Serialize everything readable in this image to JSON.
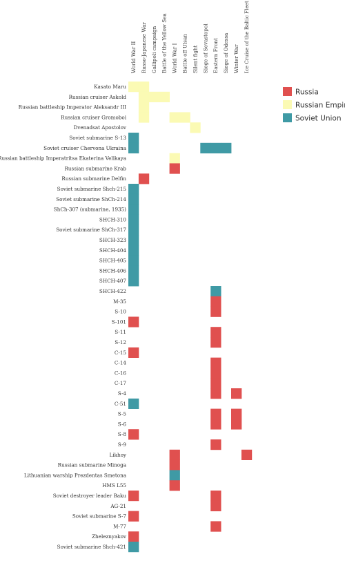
{
  "chart_data": {
    "type": "heatmap",
    "columns": [
      "World War II",
      "Russo-Japanese War",
      "Gallipoli campaign",
      "Battle of the Yellow Sea",
      "World War I",
      "Battle off Ulsan",
      "Silent fight",
      "Siege of Sevastopol",
      "Eastern Front",
      "Siege of Odessa",
      "Winter War",
      "Ice Cruise of the Baltic Fleet"
    ],
    "rows": [
      "Kasato Maru",
      "Russian cruiser Askold",
      "Russian battleship Imperator Aleksandr III",
      "Russian cruiser Gromoboi",
      "Dvenadsat Apostolov",
      "Soviet submarine S-13",
      "Soviet cruiser Chervona Ukraina",
      "Russian battleship Imperatritsa Ekaterina Velikaya",
      "Russian submarine Krab",
      "Russian submarine Delfin",
      "Soviet submarine Shch-215",
      "Soviet submarine ShCh-214",
      "ShCh-307 (submarine, 1935)",
      "SHCH-310",
      "Soviet submarine ShCh-317",
      "SHCH-323",
      "SHCH-404",
      "SHCH-405",
      "SHCH-406",
      "SHCH-407",
      "SHCH-422",
      "M-35",
      "S-10",
      "S-101",
      "S-11",
      "S-12",
      "C-15",
      "C-14",
      "C-16",
      "C-17",
      "S-4",
      "C-51",
      "S-5",
      "S-6",
      "S-8",
      "S-9",
      "Likhoy",
      "Russian submarine Minoga",
      "Lithuanian warship Prezdentas Smetona",
      "HMS L55",
      "Soviet destroyer leader Baku",
      "AG-21",
      "Soviet submarine S-7",
      "M-77",
      "Zheleznyakov",
      "Soviet submarine Shch-421"
    ],
    "legend": [
      {
        "name": "Russia",
        "color": "#e0504f"
      },
      {
        "name": "Russian Empire",
        "color": "#fbfab4"
      },
      {
        "name": "Soviet Union",
        "color": "#3f9aa5"
      }
    ],
    "legend_position": "top-right",
    "cells": [
      {
        "row": "Kasato Maru",
        "col": "World War II",
        "series": "Russian Empire"
      },
      {
        "row": "Kasato Maru",
        "col": "Russo-Japanese War",
        "series": "Russian Empire"
      },
      {
        "row": "Russian cruiser Askold",
        "col": "Russo-Japanese War",
        "series": "Russian Empire"
      },
      {
        "row": "Russian cruiser Askold",
        "col": "Gallipoli campaign",
        "series": "Russian Empire"
      },
      {
        "row": "Russian cruiser Askold",
        "col": "Battle of the Yellow Sea",
        "series": "Russian Empire"
      },
      {
        "row": "Russian battleship Imperator Aleksandr III",
        "col": "Russo-Japanese War",
        "series": "Russian Empire"
      },
      {
        "row": "Russian cruiser Gromoboi",
        "col": "Russo-Japanese War",
        "series": "Russian Empire"
      },
      {
        "row": "Russian cruiser Gromoboi",
        "col": "World War I",
        "series": "Russian Empire"
      },
      {
        "row": "Russian cruiser Gromoboi",
        "col": "Battle off Ulsan",
        "series": "Russian Empire"
      },
      {
        "row": "Dvenadsat Apostolov",
        "col": "Silent fight",
        "series": "Russian Empire"
      },
      {
        "row": "Soviet submarine S-13",
        "col": "World War II",
        "series": "Soviet Union"
      },
      {
        "row": "Soviet cruiser Chervona Ukraina",
        "col": "World War II",
        "series": "Soviet Union"
      },
      {
        "row": "Soviet cruiser Chervona Ukraina",
        "col": "Siege of Sevastopol",
        "series": "Soviet Union"
      },
      {
        "row": "Soviet cruiser Chervona Ukraina",
        "col": "Eastern Front",
        "series": "Soviet Union"
      },
      {
        "row": "Soviet cruiser Chervona Ukraina",
        "col": "Siege of Odessa",
        "series": "Soviet Union"
      },
      {
        "row": "Russian battleship Imperatritsa Ekaterina Velikaya",
        "col": "World War I",
        "series": "Russian Empire"
      },
      {
        "row": "Russian submarine Krab",
        "col": "World War I",
        "series": "Russia"
      },
      {
        "row": "Russian submarine Delfin",
        "col": "Russo-Japanese War",
        "series": "Russia"
      },
      {
        "row": "Soviet submarine Shch-215",
        "col": "World War II",
        "series": "Soviet Union"
      },
      {
        "row": "Soviet submarine ShCh-214",
        "col": "World War II",
        "series": "Soviet Union"
      },
      {
        "row": "ShCh-307 (submarine, 1935)",
        "col": "World War II",
        "series": "Soviet Union"
      },
      {
        "row": "SHCH-310",
        "col": "World War II",
        "series": "Soviet Union"
      },
      {
        "row": "Soviet submarine ShCh-317",
        "col": "World War II",
        "series": "Soviet Union"
      },
      {
        "row": "SHCH-323",
        "col": "World War II",
        "series": "Soviet Union"
      },
      {
        "row": "SHCH-404",
        "col": "World War II",
        "series": "Soviet Union"
      },
      {
        "row": "SHCH-405",
        "col": "World War II",
        "series": "Soviet Union"
      },
      {
        "row": "SHCH-406",
        "col": "World War II",
        "series": "Soviet Union"
      },
      {
        "row": "SHCH-407",
        "col": "World War II",
        "series": "Soviet Union"
      },
      {
        "row": "SHCH-422",
        "col": "Eastern Front",
        "series": "Soviet Union"
      },
      {
        "row": "M-35",
        "col": "Eastern Front",
        "series": "Russia"
      },
      {
        "row": "S-10",
        "col": "Eastern Front",
        "series": "Russia"
      },
      {
        "row": "S-101",
        "col": "World War II",
        "series": "Russia"
      },
      {
        "row": "S-11",
        "col": "Eastern Front",
        "series": "Russia"
      },
      {
        "row": "S-12",
        "col": "Eastern Front",
        "series": "Russia"
      },
      {
        "row": "C-15",
        "col": "World War II",
        "series": "Russia"
      },
      {
        "row": "C-14",
        "col": "Eastern Front",
        "series": "Russia"
      },
      {
        "row": "C-16",
        "col": "Eastern Front",
        "series": "Russia"
      },
      {
        "row": "C-17",
        "col": "Eastern Front",
        "series": "Russia"
      },
      {
        "row": "S-4",
        "col": "Eastern Front",
        "series": "Russia"
      },
      {
        "row": "S-4",
        "col": "Winter War",
        "series": "Russia"
      },
      {
        "row": "C-51",
        "col": "World War II",
        "series": "Soviet Union"
      },
      {
        "row": "S-5",
        "col": "Eastern Front",
        "series": "Russia"
      },
      {
        "row": "S-5",
        "col": "Winter War",
        "series": "Russia"
      },
      {
        "row": "S-6",
        "col": "Eastern Front",
        "series": "Russia"
      },
      {
        "row": "S-6",
        "col": "Winter War",
        "series": "Russia"
      },
      {
        "row": "S-8",
        "col": "World War II",
        "series": "Russia"
      },
      {
        "row": "S-9",
        "col": "Eastern Front",
        "series": "Russia"
      },
      {
        "row": "Likhoy",
        "col": "Ice Cruise of the Baltic Fleet",
        "series": "Russia"
      },
      {
        "row": "Likhoy",
        "col": "World War I",
        "series": "Russia"
      },
      {
        "row": "Russian submarine Minoga",
        "col": "World War I",
        "series": "Russia"
      },
      {
        "row": "Lithuanian warship Prezdentas Smetona",
        "col": "World War I",
        "series": "Soviet Union"
      },
      {
        "row": "HMS L55",
        "col": "World War I",
        "series": "Russia"
      },
      {
        "row": "Soviet destroyer leader Baku",
        "col": "World War II",
        "series": "Russia"
      },
      {
        "row": "Soviet destroyer leader Baku",
        "col": "Eastern Front",
        "series": "Russia"
      },
      {
        "row": "AG-21",
        "col": "Eastern Front",
        "series": "Russia"
      },
      {
        "row": "Soviet submarine S-7",
        "col": "World War II",
        "series": "Russia"
      },
      {
        "row": "M-77",
        "col": "Eastern Front",
        "series": "Russia"
      },
      {
        "row": "Zheleznyakov",
        "col": "World War II",
        "series": "Russia"
      },
      {
        "row": "Soviet submarine Shch-421",
        "col": "World War II",
        "series": "Soviet Union"
      }
    ]
  }
}
